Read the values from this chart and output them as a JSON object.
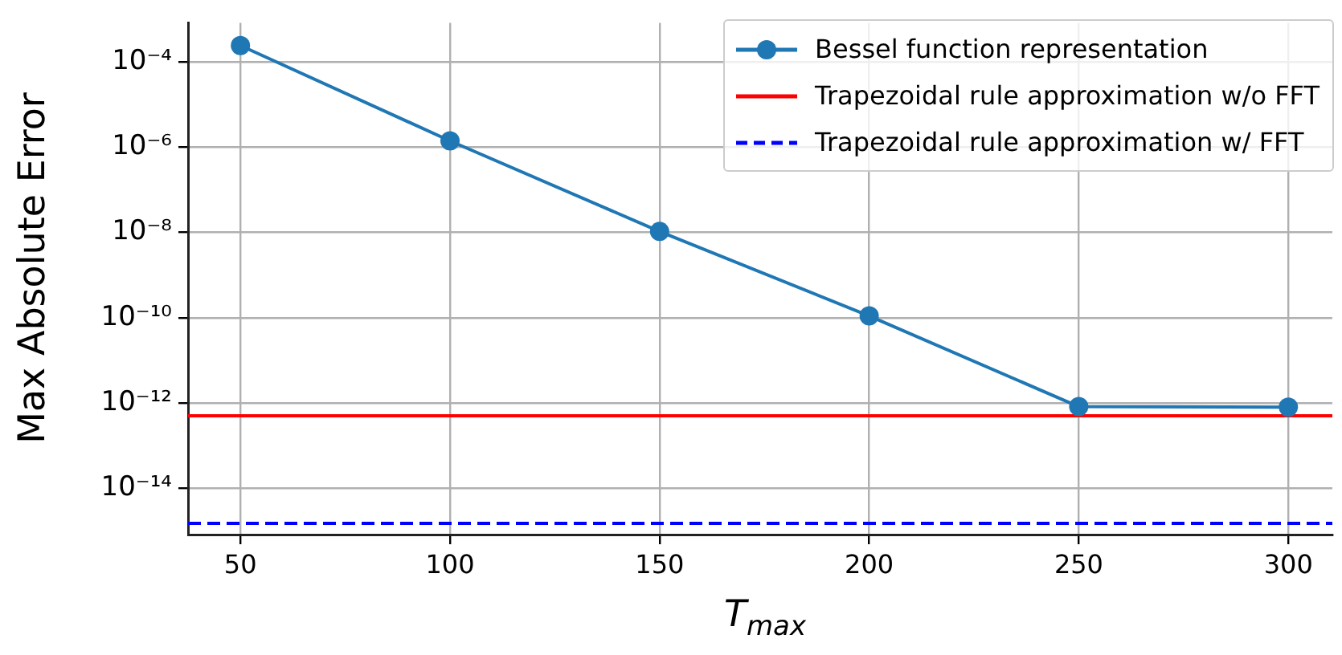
{
  "chart_data": {
    "type": "line",
    "xlabel": "T$_{max}$",
    "ylabel": "Max Absolute Error",
    "log": "y",
    "grid": true,
    "legend": "top right",
    "marker": "circle",
    "line_style": "solid",
    "x": [
      50,
      100,
      150,
      200,
      250,
      300
    ],
    "series": [
      {
        "name": "Bessel function representation",
        "color": "#1f77b4",
        "values": [
          0.00024,
          1.4e-06,
          1.05e-08,
          1.1e-10,
          8.2e-13,
          8e-13
        ]
      }
    ],
    "ref_lines": [
      {
        "axis": "y",
        "value": 5e-13,
        "label": "Trapezoidal rule approximation w/o FFT",
        "color": "#ff0000",
        "line_style": "solid"
      },
      {
        "axis": "y",
        "value": 1.5e-15,
        "label": "Trapezoidal rule approximation w/ FFT",
        "color": "#0000ff",
        "line_style": "dashed"
      }
    ],
    "xlim": [
      37.5,
      310.5
    ],
    "xticks": [
      50,
      100,
      150,
      200,
      250,
      300
    ],
    "ylim": [
      8.2e-16,
      0.00082
    ],
    "yticks": [
      {
        "value": 0.0001,
        "label": "10⁻⁴"
      },
      {
        "value": 1e-06,
        "label": "10⁻⁶"
      },
      {
        "value": 1e-08,
        "label": "10⁻⁸"
      },
      {
        "value": 1e-10,
        "label": "10⁻¹⁰"
      },
      {
        "value": 1e-12,
        "label": "10⁻¹²"
      },
      {
        "value": 1e-14,
        "label": "10⁻¹⁴"
      }
    ]
  }
}
